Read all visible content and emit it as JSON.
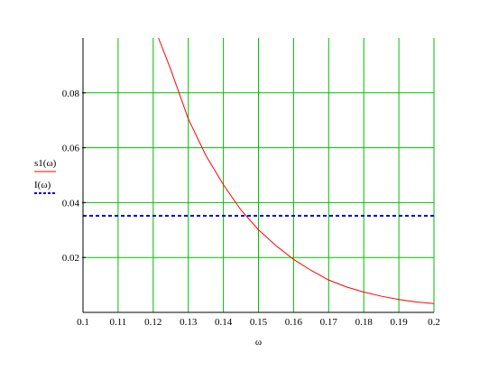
{
  "chart_data": {
    "type": "line",
    "title": "",
    "xlabel": "ω",
    "ylabel": "",
    "xlim": [
      0.1,
      0.2
    ],
    "ylim": [
      0.0,
      0.1
    ],
    "x_ticks": [
      0.1,
      0.11,
      0.12,
      0.13,
      0.14,
      0.15,
      0.16,
      0.17,
      0.18,
      0.19,
      0.2
    ],
    "x_tick_labels": [
      "0.1",
      "0.11",
      "0.12",
      "0.13",
      "0.14",
      "0.15",
      "0.16",
      "0.17",
      "0.18",
      "0.19",
      "0.2"
    ],
    "y_ticks": [
      0.02,
      0.04,
      0.06,
      0.08
    ],
    "y_tick_labels": [
      "0.02",
      "0.04",
      "0.06",
      "0.08"
    ],
    "grid": true,
    "legend_placement": "left",
    "series": [
      {
        "name": "s1(ω)",
        "color": "#ff0000",
        "style": "solid",
        "x": [
          0.1215,
          0.125,
          0.13,
          0.135,
          0.14,
          0.145,
          0.15,
          0.155,
          0.16,
          0.165,
          0.17,
          0.175,
          0.18,
          0.185,
          0.19,
          0.195,
          0.2
        ],
        "y": [
          0.1,
          0.0885,
          0.0705,
          0.0572,
          0.0465,
          0.0373,
          0.0301,
          0.0243,
          0.0193,
          0.0153,
          0.0118,
          0.0093,
          0.0074,
          0.0059,
          0.0047,
          0.0038,
          0.0032
        ]
      },
      {
        "name": "I(ω)",
        "color": "#0000cc",
        "style": "dashed",
        "x": [
          0.1,
          0.2
        ],
        "y": [
          0.0352,
          0.0352
        ]
      }
    ]
  }
}
